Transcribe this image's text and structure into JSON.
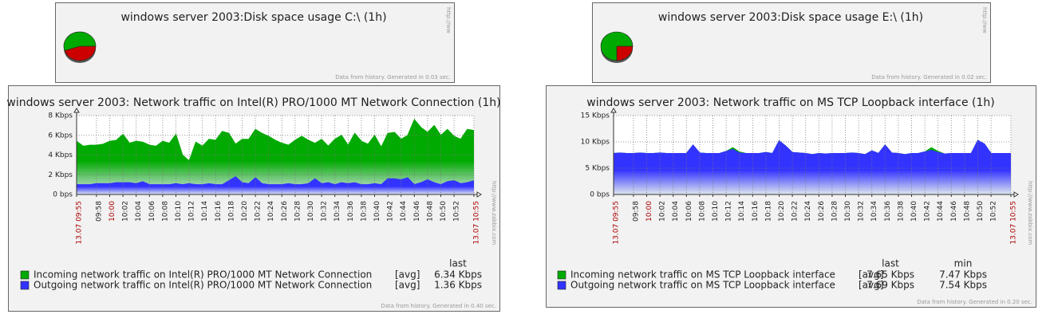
{
  "chart_data": [
    {
      "type": "pie",
      "title": "windows server 2003:Disk space usage C:\\ (1h)",
      "values": [
        45,
        55
      ],
      "colors": [
        "#cc0000",
        "#00aa00"
      ],
      "footer": "Data from history. Generated in 0.03 sec.",
      "watermark": "http://ww"
    },
    {
      "type": "pie",
      "title": "windows server 2003:Disk space usage E:\\ (1h)",
      "values": [
        25,
        75
      ],
      "colors": [
        "#cc0000",
        "#00aa00"
      ],
      "footer": "Data from history. Generated in 0.02 sec.",
      "watermark": "http://ww"
    },
    {
      "type": "area",
      "title": "windows server 2003: Network traffic on Intel(R) PRO/1000 MT Network Connection (1h)",
      "categories": [
        "13.07 09:55",
        null,
        null,
        "09:58",
        null,
        "10:00",
        null,
        "10:02",
        null,
        "10:04",
        null,
        "10:06",
        null,
        "10:08",
        null,
        "10:10",
        null,
        "10:12",
        null,
        "10:14",
        null,
        "10:16",
        null,
        "10:18",
        null,
        "10:20",
        null,
        "10:22",
        null,
        "10:24",
        null,
        "10:26",
        null,
        "10:28",
        null,
        "10:30",
        null,
        "10:32",
        null,
        "10:34",
        null,
        "10:36",
        null,
        "10:38",
        null,
        "10:40",
        null,
        "10:42",
        null,
        "10:44",
        null,
        "10:46",
        null,
        "10:48",
        null,
        "10:50",
        null,
        "10:52",
        null,
        null,
        "13.07 10:55"
      ],
      "ylim": [
        0,
        8
      ],
      "yticks": [
        {
          "value": 0,
          "label": "0 bps"
        },
        {
          "value": 2,
          "label": "2 Kbps"
        },
        {
          "value": 4,
          "label": "4 Kbps"
        },
        {
          "value": 6,
          "label": "6 Kbps"
        },
        {
          "value": 8,
          "label": "8 Kbps"
        }
      ],
      "grid": true,
      "legend_columns": [
        "last"
      ],
      "series": [
        {
          "name": "Incoming network traffic on Intel(R) PRO/1000 MT Network Connection",
          "color": "#00aa00",
          "function": "[avg]",
          "stats": [
            "6.34 Kbps"
          ],
          "values": [
            5.4,
            4.9,
            5.0,
            5.0,
            5.1,
            5.4,
            5.5,
            6.1,
            5.2,
            5.4,
            5.3,
            5.0,
            4.9,
            5.4,
            5.2,
            6.1,
            4.0,
            3.4,
            5.3,
            4.9,
            5.6,
            5.5,
            6.4,
            6.2,
            5.1,
            5.6,
            5.6,
            6.6,
            6.2,
            5.9,
            5.5,
            5.2,
            5.0,
            5.5,
            5.9,
            5.5,
            5.2,
            5.6,
            4.9,
            5.6,
            6.0,
            5.0,
            6.2,
            5.4,
            5.1,
            6.0,
            4.8,
            6.2,
            6.3,
            5.6,
            6.0,
            7.6,
            6.8,
            6.3,
            7.0,
            6.0,
            6.6,
            5.9,
            5.6,
            6.6,
            6.5
          ]
        },
        {
          "name": "Outgoing network traffic on Intel(R) PRO/1000 MT Network Connection",
          "color": "#3333ff",
          "function": "[avg]",
          "stats": [
            "1.36 Kbps"
          ],
          "values": [
            1.0,
            1.0,
            1.0,
            1.1,
            1.1,
            1.1,
            1.2,
            1.2,
            1.2,
            1.1,
            1.3,
            1.0,
            1.0,
            1.0,
            1.0,
            1.1,
            1.0,
            1.1,
            1.0,
            1.0,
            1.1,
            1.0,
            1.0,
            1.4,
            1.8,
            1.2,
            1.1,
            1.7,
            1.1,
            1.0,
            1.0,
            1.0,
            1.1,
            1.0,
            1.0,
            1.1,
            1.6,
            1.1,
            1.2,
            1.0,
            1.2,
            1.1,
            1.2,
            1.0,
            1.0,
            1.1,
            1.0,
            1.6,
            1.6,
            1.5,
            1.7,
            1.0,
            1.2,
            1.5,
            1.2,
            1.0,
            1.3,
            1.4,
            1.1,
            1.2,
            1.4
          ]
        }
      ],
      "footer": "Data from history. Generated in 0.40 sec.",
      "watermark": "http://www.zabbix.com"
    },
    {
      "type": "area",
      "title": "windows server 2003: Network traffic on MS TCP Loopback interface (1h)",
      "categories": [
        "13.07 09:55",
        null,
        null,
        "09:58",
        null,
        "10:00",
        null,
        "10:02",
        null,
        "10:04",
        null,
        "10:06",
        null,
        "10:08",
        null,
        "10:10",
        null,
        "10:12",
        null,
        "10:14",
        null,
        "10:16",
        null,
        "10:18",
        null,
        "10:20",
        null,
        "10:22",
        null,
        "10:24",
        null,
        "10:26",
        null,
        "10:28",
        null,
        "10:30",
        null,
        "10:32",
        null,
        "10:34",
        null,
        "10:36",
        null,
        "10:38",
        null,
        "10:40",
        null,
        "10:42",
        null,
        "10:44",
        null,
        "10:46",
        null,
        "10:48",
        null,
        "10:50",
        null,
        "10:52",
        null,
        null,
        "13.07 10:55"
      ],
      "ylim": [
        0,
        15
      ],
      "yticks": [
        {
          "value": 0,
          "label": "0 bps"
        },
        {
          "value": 5,
          "label": "5 Kbps"
        },
        {
          "value": 10,
          "label": "10 Kbps"
        },
        {
          "value": 15,
          "label": "15 Kbps"
        }
      ],
      "grid": true,
      "legend_columns": [
        "last",
        "min"
      ],
      "series": [
        {
          "name": "Incoming network traffic on MS TCP Loopback interface",
          "color": "#00aa00",
          "function": "[avg]",
          "stats": [
            "7.65 Kbps",
            "7.47 Kbps"
          ],
          "values": [
            7.8,
            7.9,
            7.8,
            7.8,
            7.9,
            7.8,
            7.8,
            7.9,
            7.8,
            7.8,
            7.8,
            7.8,
            9.4,
            7.9,
            7.8,
            7.8,
            7.8,
            8.2,
            8.9,
            8.1,
            7.8,
            7.8,
            7.8,
            8.0,
            7.8,
            10.2,
            9.2,
            8.0,
            7.9,
            7.8,
            7.6,
            7.8,
            7.7,
            7.8,
            7.8,
            7.8,
            7.9,
            7.8,
            7.6,
            8.3,
            7.8,
            9.4,
            7.9,
            7.8,
            7.6,
            7.8,
            7.8,
            8.1,
            8.9,
            8.2,
            7.7,
            7.8,
            7.8,
            7.8,
            7.8,
            10.3,
            9.6,
            7.8,
            7.8,
            7.8,
            7.8
          ]
        },
        {
          "name": "Outgoing network traffic on MS TCP Loopback interface",
          "color": "#3333ff",
          "function": "[avg]",
          "stats": [
            "7.69 Kbps",
            "7.54 Kbps"
          ],
          "values": [
            7.8,
            7.9,
            7.8,
            7.8,
            7.9,
            7.8,
            7.8,
            7.9,
            7.8,
            7.8,
            7.8,
            7.8,
            9.4,
            7.9,
            7.8,
            7.8,
            7.8,
            8.2,
            8.6,
            7.9,
            7.8,
            7.8,
            7.8,
            8.0,
            7.8,
            10.2,
            9.2,
            8.0,
            7.9,
            7.8,
            7.6,
            7.8,
            7.7,
            7.8,
            7.8,
            7.8,
            7.9,
            7.8,
            7.6,
            8.3,
            7.8,
            9.4,
            7.9,
            7.8,
            7.6,
            7.8,
            7.8,
            8.1,
            8.4,
            8.0,
            7.7,
            7.8,
            7.8,
            7.8,
            7.8,
            10.3,
            9.6,
            7.8,
            7.8,
            7.8,
            7.8
          ]
        }
      ],
      "footer": "Data from history. Generated in 0.20 sec.",
      "watermark": "http://www.zabbix.com"
    }
  ]
}
